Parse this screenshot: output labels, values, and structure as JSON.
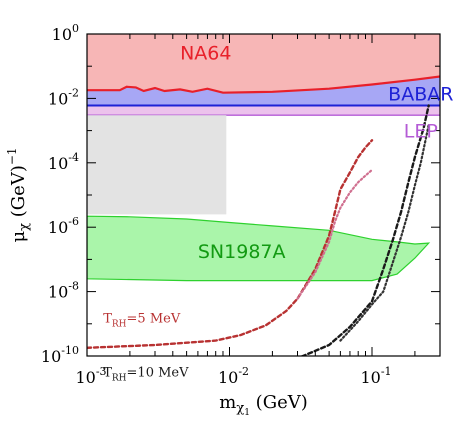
{
  "chart_data": {
    "type": "area",
    "title": "",
    "xlabel": "m_{χ1} (GeV)",
    "ylabel": "μ_χ (GeV)^-1",
    "xscale": "log",
    "yscale": "log",
    "xlim": [
      0.001,
      0.3
    ],
    "ylim": [
      1e-10,
      1
    ],
    "x_ticks": [
      {
        "mant": "10",
        "exp": "-3",
        "value": 0.001
      },
      {
        "mant": "10",
        "exp": "-2",
        "value": 0.01
      },
      {
        "mant": "10",
        "exp": "-1",
        "value": 0.1
      }
    ],
    "y_ticks": [
      {
        "mant": "10",
        "exp": "0",
        "value": 1
      },
      {
        "mant": "10",
        "exp": "-2",
        "value": 0.01
      },
      {
        "mant": "10",
        "exp": "-4",
        "value": 0.0001
      },
      {
        "mant": "10",
        "exp": "-6",
        "value": 1e-06
      },
      {
        "mant": "10",
        "exp": "-8",
        "value": 1e-08
      },
      {
        "mant": "10",
        "exp": "-10",
        "value": 1e-10
      }
    ],
    "regions": [
      {
        "name": "NA64",
        "fill": "#f7b6b6",
        "stroke": "#e8202a",
        "label_at": [
          0.0045,
          0.16
        ],
        "label_color": "#e8202a",
        "boundary": [
          [
            0.001,
            0.018
          ],
          [
            0.0017,
            0.018
          ],
          [
            0.0019,
            0.023
          ],
          [
            0.0022,
            0.022
          ],
          [
            0.0025,
            0.017
          ],
          [
            0.003,
            0.021
          ],
          [
            0.0035,
            0.017
          ],
          [
            0.0045,
            0.019
          ],
          [
            0.0055,
            0.016
          ],
          [
            0.007,
            0.02
          ],
          [
            0.009,
            0.015
          ],
          [
            0.02,
            0.016
          ],
          [
            0.05,
            0.02
          ],
          [
            0.1,
            0.027
          ],
          [
            0.2,
            0.038
          ],
          [
            0.3,
            0.048
          ]
        ]
      },
      {
        "name": "BABAR",
        "fill": "#a7a7f5",
        "stroke": "#1e22d6",
        "label_at": [
          0.22,
          0.0085
        ],
        "label_color": "#1e22d6",
        "level": 0.006
      },
      {
        "name": "LEP",
        "fill": "#ecc2ec",
        "stroke": "#b45bd6",
        "label_at": [
          0.22,
          0.00062
        ],
        "label_color": "#b45bd6",
        "level": 0.003
      },
      {
        "name": "",
        "fill": "#e3e3e3",
        "x_range": [
          0.001,
          0.0095
        ],
        "y_range": [
          2.5e-06,
          0.003
        ]
      },
      {
        "name": "SN1987A",
        "fill": "#aaf5aa",
        "stroke": "#2ed12e",
        "label_at": [
          0.006,
          1.1e-07
        ],
        "label_color": "#129a12",
        "upper": [
          [
            0.001,
            2.2e-06
          ],
          [
            0.002,
            2.1e-06
          ],
          [
            0.005,
            1.8e-06
          ],
          [
            0.01,
            1.4e-06
          ],
          [
            0.02,
            1.1e-06
          ],
          [
            0.05,
            8e-07
          ],
          [
            0.1,
            4.2e-07
          ],
          [
            0.15,
            3.5e-07
          ],
          [
            0.2,
            3e-07
          ],
          [
            0.25,
            3.2e-07
          ]
        ],
        "lower": [
          [
            0.25,
            3.2e-07
          ],
          [
            0.2,
            1.1e-07
          ],
          [
            0.15,
            3.5e-08
          ],
          [
            0.1,
            2.2e-08
          ],
          [
            0.05,
            2.2e-08
          ],
          [
            0.02,
            2.2e-08
          ],
          [
            0.005,
            2.2e-08
          ],
          [
            0.001,
            2.5e-08
          ]
        ]
      }
    ],
    "series": [
      {
        "name": "T_RH=5 MeV",
        "color": "#b83232",
        "dash": "dashed",
        "points": [
          [
            0.001,
            1.8e-10
          ],
          [
            0.003,
            2.2e-10
          ],
          [
            0.008,
            3e-10
          ],
          [
            0.012,
            4.5e-10
          ],
          [
            0.018,
            9e-10
          ],
          [
            0.025,
            2.5e-09
          ],
          [
            0.03,
            6e-09
          ],
          [
            0.04,
            5e-08
          ],
          [
            0.05,
            5.5e-07
          ],
          [
            0.055,
            3e-06
          ],
          [
            0.06,
            1.5e-05
          ],
          [
            0.07,
            5e-05
          ],
          [
            0.08,
            0.00015
          ],
          [
            0.09,
            0.0003
          ],
          [
            0.1,
            0.0005
          ]
        ]
      },
      {
        "name": "",
        "color": "#d07090",
        "dash": "dotted",
        "points": [
          [
            0.03,
            6e-09
          ],
          [
            0.04,
            4e-08
          ],
          [
            0.05,
            3.5e-07
          ],
          [
            0.055,
            1.5e-06
          ],
          [
            0.06,
            4e-06
          ],
          [
            0.07,
            1.2e-05
          ],
          [
            0.08,
            2.5e-05
          ],
          [
            0.09,
            4e-05
          ],
          [
            0.1,
            6e-05
          ]
        ]
      },
      {
        "name": "T_RH=10 MeV",
        "color": "#1a1a1a",
        "dash": "dashed",
        "points": [
          [
            0.001,
            8.5e-11
          ],
          [
            0.003,
            6.5e-11
          ],
          [
            0.007,
            4e-11
          ],
          [
            0.015,
            4e-11
          ],
          [
            0.03,
            8.5e-11
          ],
          [
            0.05,
            2.2e-10
          ],
          [
            0.07,
            8e-10
          ],
          [
            0.1,
            5e-09
          ],
          [
            0.12,
            5e-08
          ],
          [
            0.14,
            4e-07
          ],
          [
            0.16,
            3e-06
          ],
          [
            0.18,
            2.5e-05
          ],
          [
            0.2,
            0.00015
          ],
          [
            0.23,
            0.0012
          ],
          [
            0.25,
            0.006
          ]
        ]
      },
      {
        "name": "",
        "color": "#333333",
        "dash": "dotted",
        "points": [
          [
            0.06,
            3e-10
          ],
          [
            0.08,
            1.2e-09
          ],
          [
            0.1,
            4e-09
          ],
          [
            0.12,
            1e-08
          ],
          [
            0.14,
            8e-08
          ],
          [
            0.16,
            5e-07
          ],
          [
            0.18,
            3e-06
          ],
          [
            0.2,
            2e-05
          ],
          [
            0.22,
            0.0001
          ],
          [
            0.25,
            0.0015
          ]
        ]
      }
    ],
    "annotations": [
      {
        "main": "T",
        "sub": "RH",
        "rest": "=5 MeV",
        "color": "#b83232",
        "at": [
          0.0013,
          1.1e-09
        ]
      },
      {
        "main": "T",
        "sub": "RH",
        "rest": "=10 MeV",
        "color": "#1a1a1a",
        "at": [
          0.0013,
          2.3e-11
        ]
      }
    ]
  }
}
